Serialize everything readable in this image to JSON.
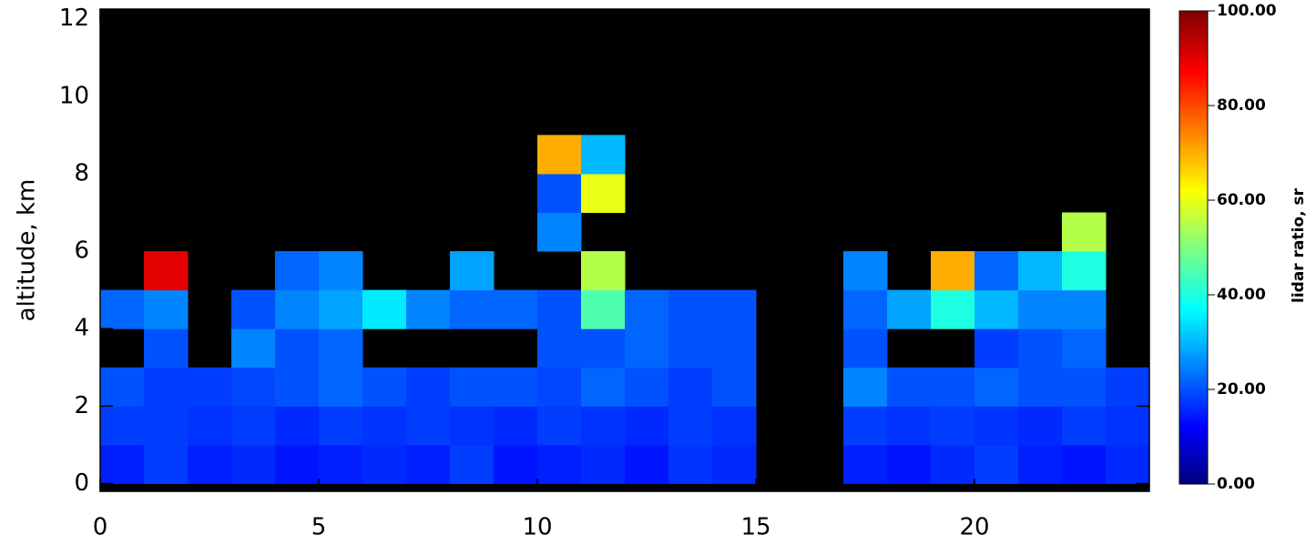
{
  "chart_data": {
    "type": "heatmap",
    "y_label": "altitude, km",
    "colorbar_label": "lidar ratio, sr",
    "xlim": [
      0,
      24
    ],
    "xticks": [
      0,
      5,
      10,
      15,
      20
    ],
    "ylim": [
      -0.2,
      12.25
    ],
    "yticks": [
      0,
      2,
      4,
      6,
      8,
      10,
      12
    ],
    "x_edges": [
      0,
      1,
      2,
      3,
      4,
      5,
      6,
      7,
      8,
      9,
      10,
      11,
      12,
      13,
      14,
      15,
      16,
      17,
      18,
      19,
      20,
      21,
      22,
      23,
      24
    ],
    "y_edges": [
      0,
      1,
      2,
      3,
      4,
      5,
      6,
      7,
      8,
      9,
      10,
      11,
      12
    ],
    "zlim": [
      0,
      100
    ],
    "zticks": [
      {
        "value": 0,
        "label": "0.00"
      },
      {
        "value": 20,
        "label": "20.00"
      },
      {
        "value": 40,
        "label": "40.00"
      },
      {
        "value": 60,
        "label": "60.00"
      },
      {
        "value": 80,
        "label": "80.00"
      },
      {
        "value": 100,
        "label": "100.00"
      }
    ],
    "colorscale": [
      [
        0,
        "#00007f"
      ],
      [
        12,
        "#0000ff"
      ],
      [
        37,
        "#00ffff"
      ],
      [
        50,
        "#7fff7f"
      ],
      [
        62,
        "#ffff00"
      ],
      [
        87,
        "#ff0000"
      ],
      [
        100,
        "#800000"
      ]
    ],
    "background": "#000000",
    "z": [
      [
        15,
        18,
        15,
        16,
        14,
        15,
        16,
        15,
        18,
        14,
        15,
        16,
        14,
        17,
        16,
        null,
        null,
        15,
        14,
        16,
        18,
        15,
        14,
        16
      ],
      [
        18,
        18,
        17,
        18,
        16,
        18,
        17,
        18,
        17,
        16,
        18,
        17,
        16,
        18,
        17,
        null,
        null,
        18,
        17,
        18,
        17,
        16,
        18,
        17
      ],
      [
        20,
        18,
        18,
        19,
        20,
        22,
        20,
        18,
        20,
        20,
        19,
        22,
        20,
        18,
        20,
        null,
        null,
        25,
        20,
        20,
        22,
        20,
        20,
        18
      ],
      [
        null,
        20,
        null,
        25,
        20,
        22,
        null,
        null,
        null,
        null,
        20,
        20,
        22,
        20,
        20,
        null,
        null,
        20,
        null,
        null,
        18,
        20,
        22,
        null
      ],
      [
        22,
        25,
        null,
        20,
        25,
        28,
        35,
        25,
        22,
        22,
        20,
        45,
        22,
        20,
        20,
        null,
        null,
        22,
        28,
        40,
        30,
        25,
        25,
        null
      ],
      [
        null,
        90,
        null,
        null,
        22,
        25,
        null,
        null,
        28,
        null,
        null,
        55,
        null,
        null,
        null,
        null,
        null,
        25,
        null,
        70,
        22,
        30,
        40,
        null
      ],
      [
        null,
        null,
        null,
        null,
        null,
        null,
        null,
        null,
        null,
        null,
        25,
        null,
        null,
        null,
        null,
        null,
        null,
        null,
        null,
        null,
        null,
        null,
        55,
        null
      ],
      [
        null,
        null,
        null,
        null,
        null,
        null,
        null,
        null,
        null,
        null,
        20,
        60,
        null,
        null,
        null,
        null,
        null,
        null,
        null,
        null,
        null,
        null,
        null,
        null
      ],
      [
        null,
        null,
        null,
        null,
        null,
        null,
        null,
        null,
        null,
        null,
        70,
        30,
        null,
        null,
        null,
        null,
        null,
        null,
        null,
        null,
        null,
        null,
        null,
        null
      ],
      [
        null,
        null,
        null,
        null,
        null,
        null,
        null,
        null,
        null,
        null,
        null,
        null,
        null,
        null,
        null,
        null,
        null,
        null,
        null,
        null,
        null,
        null,
        null,
        null
      ],
      [
        null,
        null,
        null,
        null,
        null,
        null,
        null,
        null,
        null,
        null,
        null,
        null,
        null,
        null,
        null,
        null,
        null,
        null,
        null,
        null,
        null,
        null,
        null,
        null
      ],
      [
        null,
        null,
        null,
        null,
        null,
        null,
        null,
        null,
        null,
        null,
        null,
        null,
        null,
        null,
        null,
        null,
        null,
        null,
        null,
        null,
        null,
        null,
        null,
        null
      ]
    ]
  }
}
